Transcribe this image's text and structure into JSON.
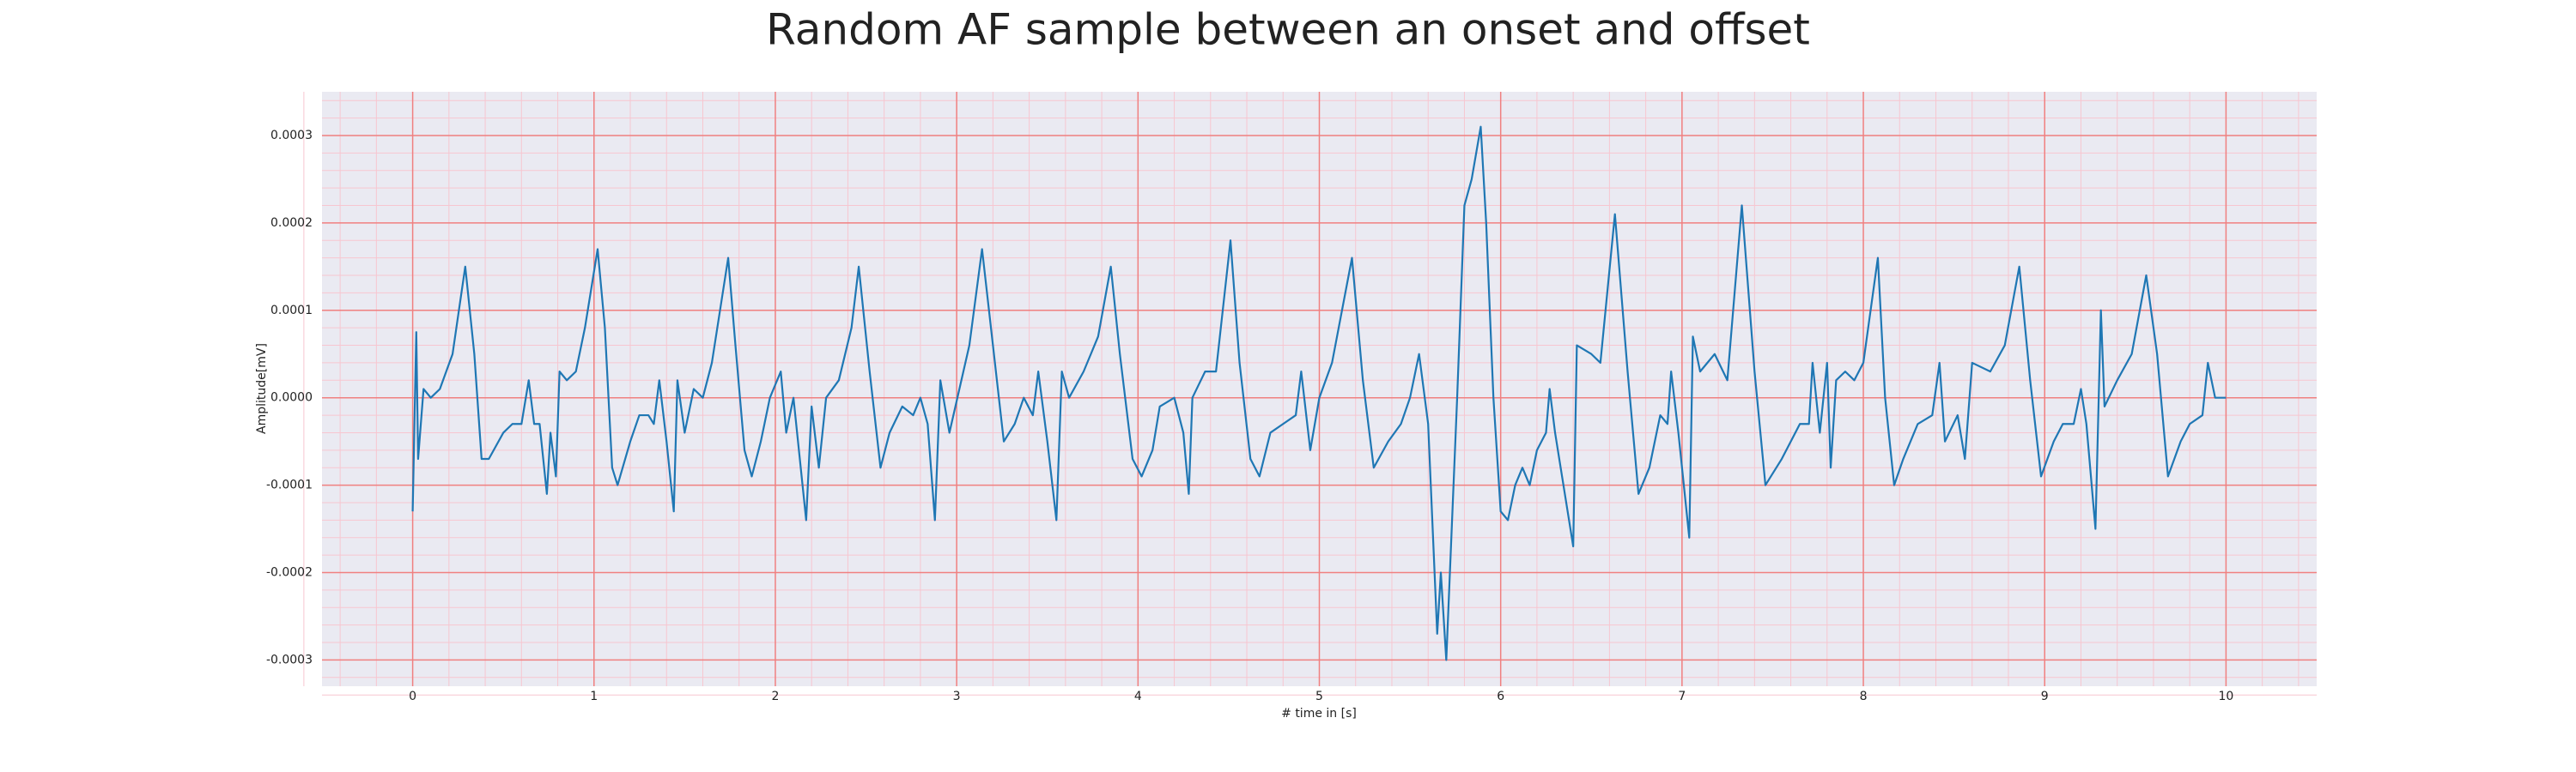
{
  "chart_data": {
    "type": "line",
    "title": "Random AF sample between an onset and offset",
    "xlabel": "# time in [s]",
    "ylabel": "Amplitude[mV]",
    "xlim": [
      -0.5,
      10.5
    ],
    "ylim": [
      -0.00033,
      0.00035
    ],
    "xticks": [
      0,
      1,
      2,
      3,
      4,
      5,
      6,
      7,
      8,
      9,
      10
    ],
    "yticks": [
      -0.0003,
      -0.0002,
      -0.0001,
      {
        "value": 0,
        "label": "0.0000"
      },
      0.0001,
      0.0002,
      0.0003
    ],
    "grid": true,
    "minor_grid": true,
    "background": "#eaeaf2",
    "grid_color": "#f08080",
    "minor_grid_color": "#f7c6d0",
    "series": [
      {
        "color": "#1f77b4",
        "x": [
          0,
          0.02,
          0.03,
          0.06,
          0.1,
          0.15,
          0.22,
          0.29,
          0.34,
          0.38,
          0.42,
          0.5,
          0.55,
          0.6,
          0.64,
          0.67,
          0.7,
          0.74,
          0.76,
          0.79,
          0.81,
          0.85,
          0.9,
          0.95,
          1.02,
          1.06,
          1.1,
          1.13,
          1.2,
          1.25,
          1.3,
          1.33,
          1.36,
          1.4,
          1.44,
          1.46,
          1.5,
          1.55,
          1.6,
          1.65,
          1.74,
          1.78,
          1.83,
          1.87,
          1.92,
          1.97,
          2.03,
          2.06,
          2.1,
          2.17,
          2.2,
          2.24,
          2.28,
          2.35,
          2.42,
          2.46,
          2.52,
          2.58,
          2.63,
          2.7,
          2.76,
          2.8,
          2.84,
          2.88,
          2.91,
          2.96,
          3.07,
          3.14,
          3.2,
          3.26,
          3.32,
          3.37,
          3.42,
          3.45,
          3.5,
          3.55,
          3.58,
          3.62,
          3.7,
          3.78,
          3.85,
          3.9,
          3.97,
          4.02,
          4.08,
          4.12,
          4.2,
          4.25,
          4.28,
          4.3,
          4.37,
          4.43,
          4.51,
          4.56,
          4.62,
          4.67,
          4.73,
          4.8,
          4.87,
          4.9,
          4.95,
          5.0,
          5.07,
          5.18,
          5.24,
          5.3,
          5.38,
          5.45,
          5.5,
          5.55,
          5.6,
          5.65,
          5.67,
          5.7,
          5.73,
          5.76,
          5.8,
          5.84,
          5.89,
          5.92,
          5.96,
          6.0,
          6.04,
          6.08,
          6.12,
          6.16,
          6.2,
          6.25,
          6.27,
          6.3,
          6.4,
          6.42,
          6.5,
          6.55,
          6.63,
          6.7,
          6.76,
          6.82,
          6.88,
          6.92,
          6.94,
          6.98,
          7.04,
          7.06,
          7.1,
          7.18,
          7.25,
          7.33,
          7.4,
          7.46,
          7.55,
          7.65,
          7.7,
          7.72,
          7.76,
          7.78,
          7.8,
          7.82,
          7.85,
          7.9,
          7.95,
          8.0,
          8.08,
          8.12,
          8.17,
          8.22,
          8.3,
          8.38,
          8.42,
          8.45,
          8.52,
          8.56,
          8.6,
          8.7,
          8.78,
          8.86,
          8.92,
          8.98,
          9.05,
          9.1,
          9.16,
          9.2,
          9.23,
          9.28,
          9.31,
          9.33,
          9.4,
          9.48,
          9.56,
          9.62,
          9.68,
          9.75,
          9.8,
          9.87,
          9.9,
          9.94,
          10.0
        ],
        "values": [
          -0.00013,
          7.5e-05,
          -7e-05,
          1e-05,
          0.0,
          1e-05,
          5e-05,
          0.00015,
          5e-05,
          -7e-05,
          -7e-05,
          -4e-05,
          -3e-05,
          -3e-05,
          2e-05,
          -3e-05,
          -3e-05,
          -0.00011,
          -4e-05,
          -9e-05,
          3e-05,
          2e-05,
          3e-05,
          8e-05,
          0.00017,
          8e-05,
          -8e-05,
          -0.0001,
          -5e-05,
          -2e-05,
          -2e-05,
          -3e-05,
          2e-05,
          -5e-05,
          -0.00013,
          2e-05,
          -4e-05,
          1e-05,
          0.0,
          4e-05,
          0.00016,
          6e-05,
          -6e-05,
          -9e-05,
          -5e-05,
          0.0,
          3e-05,
          -4e-05,
          0.0,
          -0.00014,
          -1e-05,
          -8e-05,
          0.0,
          2e-05,
          8e-05,
          0.00015,
          3e-05,
          -8e-05,
          -4e-05,
          -1e-05,
          -2e-05,
          0.0,
          -3e-05,
          -0.00014,
          2e-05,
          -4e-05,
          6e-05,
          0.00017,
          6e-05,
          -5e-05,
          -3e-05,
          0.0,
          -2e-05,
          3e-05,
          -5e-05,
          -0.00014,
          3e-05,
          0.0,
          3e-05,
          7e-05,
          0.00015,
          5e-05,
          -7e-05,
          -9e-05,
          -6e-05,
          -1e-05,
          0.0,
          -4e-05,
          -0.00011,
          0.0,
          3e-05,
          3e-05,
          0.00018,
          4e-05,
          -7e-05,
          -9e-05,
          -4e-05,
          -3e-05,
          -2e-05,
          3e-05,
          -6e-05,
          0.0,
          4e-05,
          0.00016,
          2e-05,
          -8e-05,
          -5e-05,
          -3e-05,
          0.0,
          5e-05,
          -3e-05,
          -0.00027,
          -0.0002,
          -0.0003,
          -0.00015,
          0.0,
          0.00022,
          0.00025,
          0.00031,
          0.0002,
          0.0,
          -0.00013,
          -0.00014,
          -0.0001,
          -8e-05,
          -0.0001,
          -6e-05,
          -4e-05,
          1e-05,
          -4e-05,
          -0.00017,
          6e-05,
          5e-05,
          4e-05,
          0.00021,
          3e-05,
          -0.00011,
          -8e-05,
          -2e-05,
          -3e-05,
          3e-05,
          -4e-05,
          -0.00016,
          7e-05,
          3e-05,
          5e-05,
          2e-05,
          0.00022,
          3e-05,
          -0.0001,
          -7e-05,
          -3e-05,
          -3e-05,
          4e-05,
          -4e-05,
          0.0,
          4e-05,
          -8e-05,
          2e-05,
          3e-05,
          2e-05,
          4e-05,
          0.00016,
          0.0,
          -0.0001,
          -7e-05,
          -3e-05,
          -2e-05,
          4e-05,
          -5e-05,
          -2e-05,
          -7e-05,
          4e-05,
          3e-05,
          6e-05,
          0.00015,
          2e-05,
          -9e-05,
          -5e-05,
          -3e-05,
          -3e-05,
          1e-05,
          -3e-05,
          -0.00015,
          0.0001,
          -1e-05,
          2e-05,
          5e-05,
          0.00014,
          5e-05,
          -9e-05,
          -5e-05,
          -3e-05,
          -2e-05,
          4e-05,
          0.0,
          0.0
        ]
      }
    ]
  }
}
